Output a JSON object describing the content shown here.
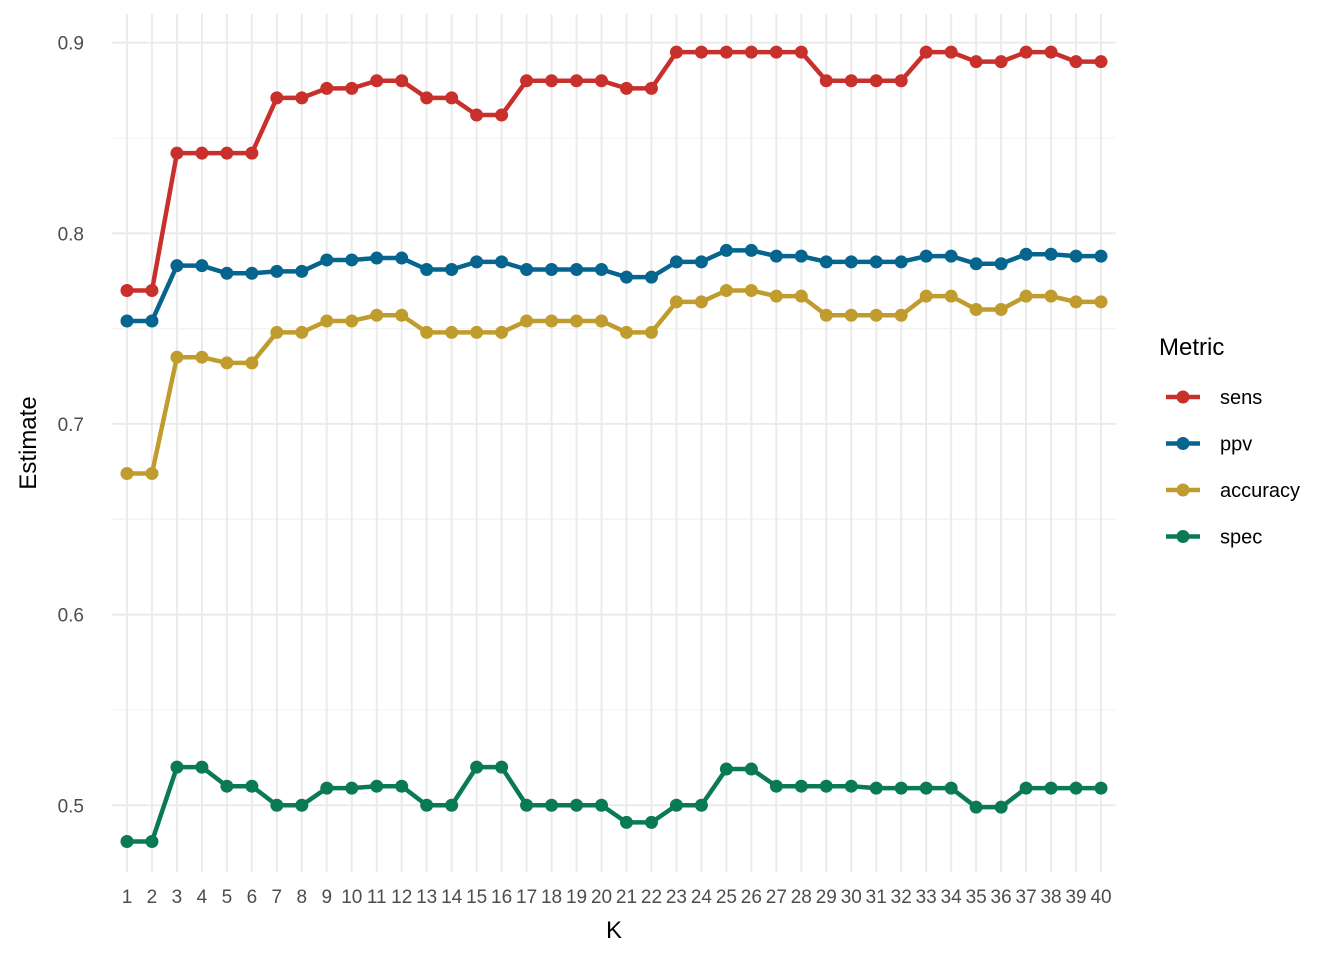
{
  "chart_data": {
    "type": "line",
    "xlabel": "K",
    "ylabel": "Estimate",
    "x": [
      1,
      2,
      3,
      4,
      5,
      6,
      7,
      8,
      9,
      10,
      11,
      12,
      13,
      14,
      15,
      16,
      17,
      18,
      19,
      20,
      21,
      22,
      23,
      24,
      25,
      26,
      27,
      28,
      29,
      30,
      31,
      32,
      33,
      34,
      35,
      36,
      37,
      38,
      39,
      40
    ],
    "x_tick_labels": [
      "1",
      "2",
      "3",
      "4",
      "5",
      "6",
      "7",
      "8",
      "9",
      "10",
      "11",
      "12",
      "13",
      "14",
      "15",
      "16",
      "17",
      "18",
      "19",
      "20",
      "21",
      "22",
      "23",
      "24",
      "25",
      "26",
      "27",
      "28",
      "29",
      "30",
      "31",
      "32",
      "33",
      "34",
      "35",
      "36",
      "37",
      "38",
      "39",
      "40"
    ],
    "ylim": [
      0.465,
      0.915
    ],
    "y_ticks": [
      0.5,
      0.6,
      0.7,
      0.8,
      0.9
    ],
    "y_tick_labels": [
      "0.5",
      "0.6",
      "0.7",
      "0.8",
      "0.9"
    ],
    "grid": true,
    "legend": {
      "title": "Metric",
      "placement": "right"
    },
    "series": [
      {
        "name": "sens",
        "color": "#c8302c",
        "values": [
          0.77,
          0.77,
          0.842,
          0.842,
          0.842,
          0.842,
          0.871,
          0.871,
          0.876,
          0.876,
          0.88,
          0.88,
          0.871,
          0.871,
          0.862,
          0.862,
          0.88,
          0.88,
          0.88,
          0.88,
          0.876,
          0.876,
          0.895,
          0.895,
          0.895,
          0.895,
          0.895,
          0.895,
          0.88,
          0.88,
          0.88,
          0.88,
          0.895,
          0.895,
          0.89,
          0.89,
          0.895,
          0.895,
          0.89,
          0.89
        ]
      },
      {
        "name": "ppv",
        "color": "#06658e",
        "values": [
          0.754,
          0.754,
          0.783,
          0.783,
          0.779,
          0.779,
          0.78,
          0.78,
          0.786,
          0.786,
          0.787,
          0.787,
          0.781,
          0.781,
          0.785,
          0.785,
          0.781,
          0.781,
          0.781,
          0.781,
          0.777,
          0.777,
          0.785,
          0.785,
          0.791,
          0.791,
          0.788,
          0.788,
          0.785,
          0.785,
          0.785,
          0.785,
          0.788,
          0.788,
          0.784,
          0.784,
          0.789,
          0.789,
          0.788,
          0.788
        ]
      },
      {
        "name": "accuracy",
        "color": "#c09c2e",
        "values": [
          0.674,
          0.674,
          0.735,
          0.735,
          0.732,
          0.732,
          0.748,
          0.748,
          0.754,
          0.754,
          0.757,
          0.757,
          0.748,
          0.748,
          0.748,
          0.748,
          0.754,
          0.754,
          0.754,
          0.754,
          0.748,
          0.748,
          0.764,
          0.764,
          0.77,
          0.77,
          0.767,
          0.767,
          0.757,
          0.757,
          0.757,
          0.757,
          0.767,
          0.767,
          0.76,
          0.76,
          0.767,
          0.767,
          0.764,
          0.764
        ]
      },
      {
        "name": "spec",
        "color": "#0a7a55",
        "values": [
          0.481,
          0.481,
          0.52,
          0.52,
          0.51,
          0.51,
          0.5,
          0.5,
          0.509,
          0.509,
          0.51,
          0.51,
          0.5,
          0.5,
          0.52,
          0.52,
          0.5,
          0.5,
          0.5,
          0.5,
          0.491,
          0.491,
          0.5,
          0.5,
          0.519,
          0.519,
          0.51,
          0.51,
          0.51,
          0.51,
          0.509,
          0.509,
          0.509,
          0.509,
          0.499,
          0.499,
          0.509,
          0.509,
          0.509,
          0.509
        ]
      }
    ]
  }
}
